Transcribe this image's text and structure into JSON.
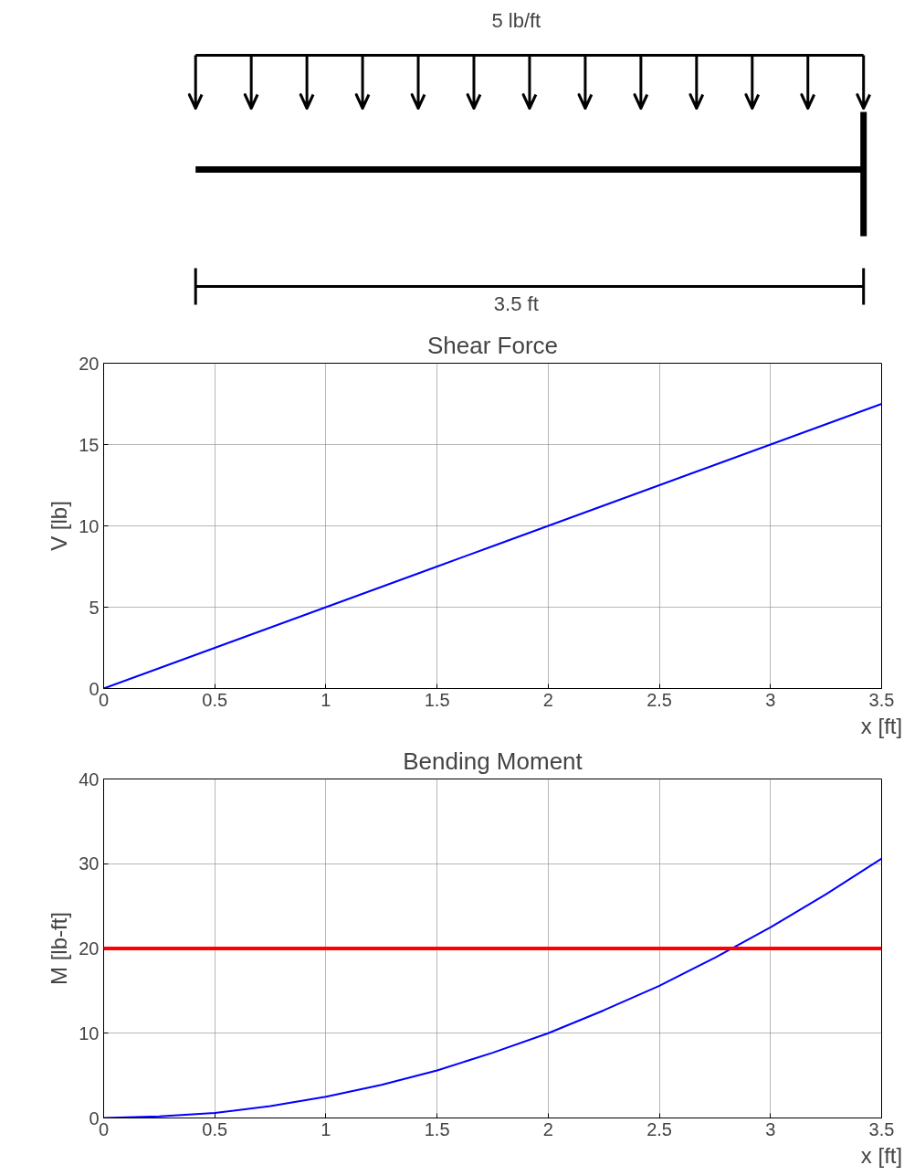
{
  "chart_data": [
    {
      "type": "other",
      "annotations": [
        "5 lb/ft",
        "3.5 ft"
      ]
    },
    {
      "type": "line",
      "title": "Shear Force",
      "xlabel": "x [ft]",
      "ylabel": "V [lb]",
      "x": [
        0,
        0.25,
        0.5,
        0.75,
        1,
        1.25,
        1.5,
        1.75,
        2,
        2.25,
        2.5,
        2.75,
        3,
        3.25,
        3.5
      ],
      "series": [
        {
          "color": "#0000ff",
          "values": [
            0,
            1.25,
            2.5,
            3.75,
            5,
            6.25,
            7.5,
            8.75,
            10,
            11.25,
            12.5,
            13.75,
            15,
            16.25,
            17.5
          ]
        }
      ],
      "xlim": [
        0,
        3.5
      ],
      "xticks": [
        0,
        0.5,
        1,
        1.5,
        2,
        2.5,
        3,
        3.5
      ],
      "ylim": [
        0,
        20
      ],
      "yticks": [
        0,
        5,
        10,
        15,
        20
      ],
      "grid": true
    },
    {
      "type": "line",
      "title": "Bending Moment",
      "xlabel": "x [ft]",
      "ylabel": "M [lb-ft]",
      "x": [
        0,
        0.25,
        0.5,
        0.75,
        1,
        1.25,
        1.5,
        1.75,
        2,
        2.25,
        2.5,
        2.75,
        3,
        3.25,
        3.5
      ],
      "series": [
        {
          "color": "#0000ff",
          "values": [
            0,
            0.2,
            0.6,
            1.4,
            2.5,
            3.9,
            5.6,
            7.7,
            10,
            12.7,
            15.6,
            18.9,
            22.5,
            26.4,
            30.6
          ]
        }
      ],
      "ref_lines": [
        {
          "axis": "y",
          "value": 20,
          "color": "#ff0000"
        }
      ],
      "xlim": [
        0,
        3.5
      ],
      "xticks": [
        0,
        0.5,
        1,
        1.5,
        2,
        2.5,
        3,
        3.5
      ],
      "ylim": [
        0,
        40
      ],
      "yticks": [
        0,
        10,
        20,
        30,
        40
      ],
      "grid": true
    }
  ]
}
